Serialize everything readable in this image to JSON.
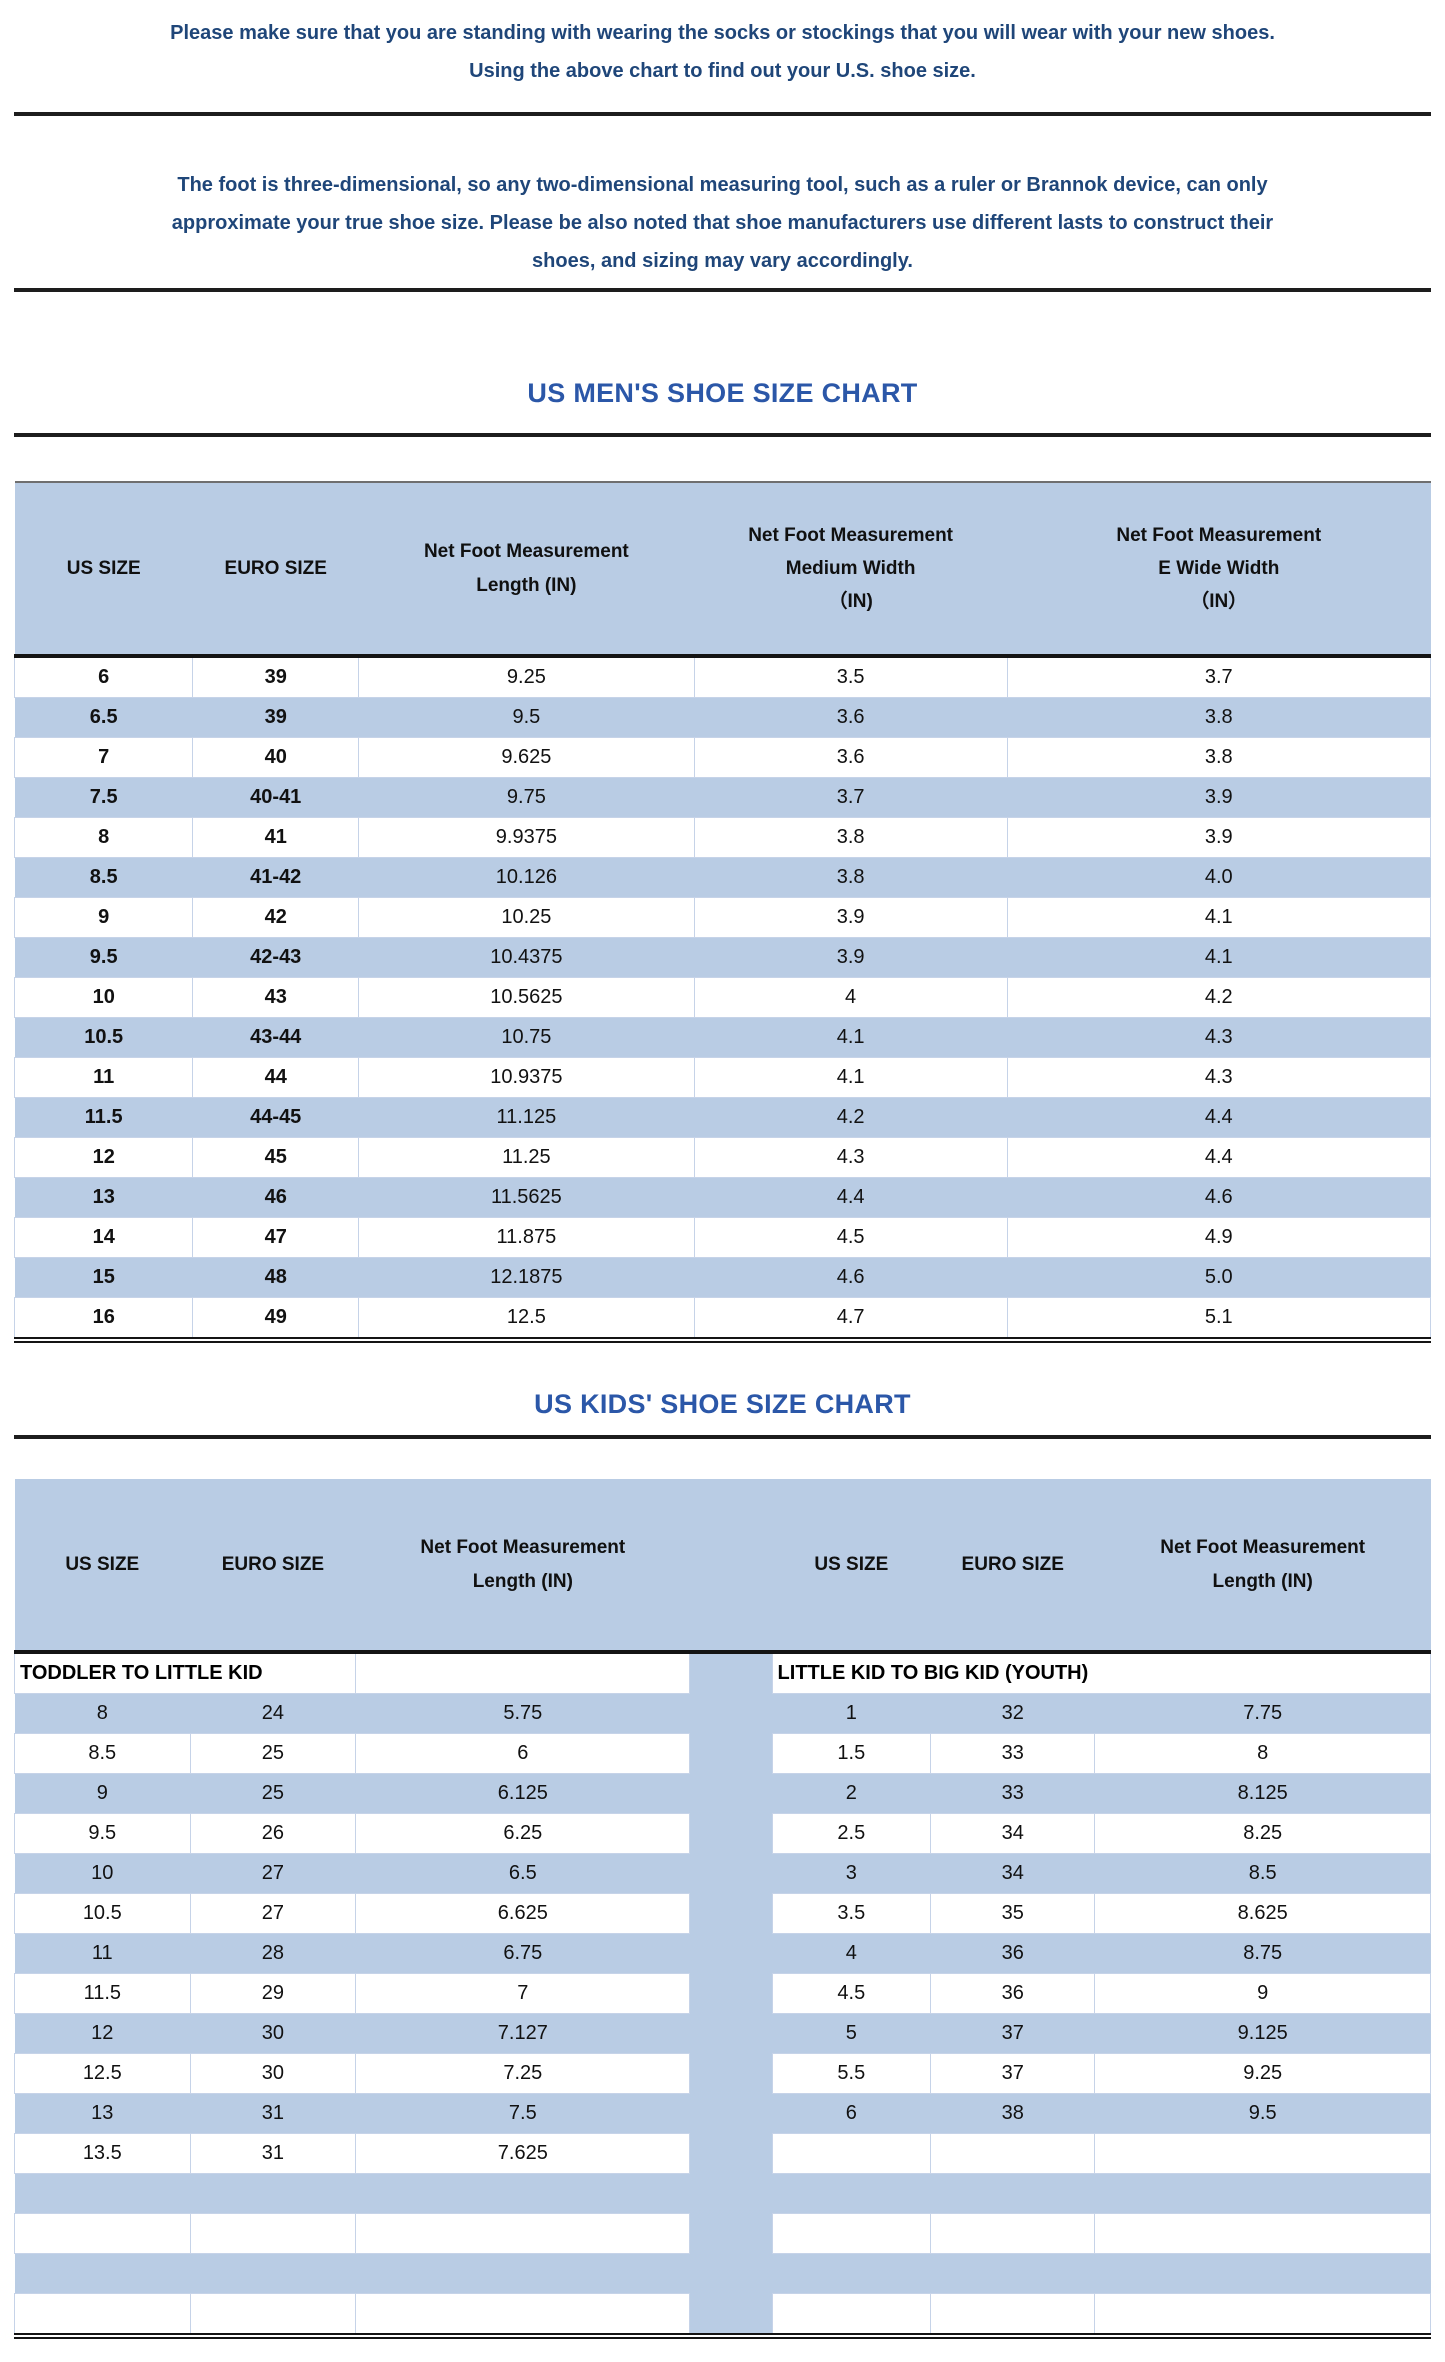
{
  "colors": {
    "paragraph_text": "#1f4679",
    "title_text": "#2b57a8",
    "row_blue": "#b9cce4",
    "grid_line": "#c6d3e8",
    "border_dark": "#141414"
  },
  "intro_primary": {
    "lines": [
      "Please make sure that you are standing with wearing the socks or stockings that you will wear with your new shoes.",
      "Using the above chart to find out your U.S. shoe size."
    ]
  },
  "intro_secondary": {
    "lines": [
      "The foot is three-dimensional, so any two-dimensional measuring tool, such as a ruler or Brannok device, can only",
      "approximate your true shoe size. Please be also noted that shoe manufacturers use different lasts to construct their",
      "shoes, and sizing may vary accordingly."
    ]
  },
  "mens_chart": {
    "title": "US MEN'S SHOE SIZE CHART",
    "columns": [
      "US SIZE",
      "EURO SIZE",
      "Net Foot Measurement\nLength (IN)",
      "Net Foot Measurement\nMedium Width\n（IN)",
      "Net Foot Measurement\nE Wide Width\n（IN）"
    ],
    "rows": [
      [
        "6",
        "39",
        "9.25",
        "3.5",
        "3.7"
      ],
      [
        "6.5",
        "39",
        "9.5",
        "3.6",
        "3.8"
      ],
      [
        "7",
        "40",
        "9.625",
        "3.6",
        "3.8"
      ],
      [
        "7.5",
        "40-41",
        "9.75",
        "3.7",
        "3.9"
      ],
      [
        "8",
        "41",
        "9.9375",
        "3.8",
        "3.9"
      ],
      [
        "8.5",
        "41-42",
        "10.126",
        "3.8",
        "4.0"
      ],
      [
        "9",
        "42",
        "10.25",
        "3.9",
        "4.1"
      ],
      [
        "9.5",
        "42-43",
        "10.4375",
        "3.9",
        "4.1"
      ],
      [
        "10",
        "43",
        "10.5625",
        "4",
        "4.2"
      ],
      [
        "10.5",
        "43-44",
        "10.75",
        "4.1",
        "4.3"
      ],
      [
        "11",
        "44",
        "10.9375",
        "4.1",
        "4.3"
      ],
      [
        "11.5",
        "44-45",
        "11.125",
        "4.2",
        "4.4"
      ],
      [
        "12",
        "45",
        "11.25",
        "4.3",
        "4.4"
      ],
      [
        "13",
        "46",
        "11.5625",
        "4.4",
        "4.6"
      ],
      [
        "14",
        "47",
        "11.875",
        "4.5",
        "4.9"
      ],
      [
        "15",
        "48",
        "12.1875",
        "4.6",
        "5.0"
      ],
      [
        "16",
        "49",
        "12.5",
        "4.7",
        "5.1"
      ]
    ]
  },
  "kids_chart": {
    "title": "US KIDS' SHOE SIZE CHART",
    "left": {
      "columns": [
        "US SIZE",
        "EURO SIZE",
        "Net Foot Measurement\nLength (IN)"
      ],
      "group_label": "TODDLER TO LITTLE KID",
      "rows": [
        [
          "8",
          "24",
          "5.75"
        ],
        [
          "8.5",
          "25",
          "6"
        ],
        [
          "9",
          "25",
          "6.125"
        ],
        [
          "9.5",
          "26",
          "6.25"
        ],
        [
          "10",
          "27",
          "6.5"
        ],
        [
          "10.5",
          "27",
          "6.625"
        ],
        [
          "11",
          "28",
          "6.75"
        ],
        [
          "11.5",
          "29",
          "7"
        ],
        [
          "12",
          "30",
          "7.127"
        ],
        [
          "12.5",
          "30",
          "7.25"
        ],
        [
          "13",
          "31",
          "7.5"
        ],
        [
          "13.5",
          "31",
          "7.625"
        ]
      ]
    },
    "right": {
      "columns": [
        "US SIZE",
        "EURO SIZE",
        "Net Foot Measurement\nLength (IN)"
      ],
      "group_label": "LITTLE KID TO BIG KID (YOUTH)",
      "rows": [
        [
          "1",
          "32",
          "7.75"
        ],
        [
          "1.5",
          "33",
          "8"
        ],
        [
          "2",
          "33",
          "8.125"
        ],
        [
          "2.5",
          "34",
          "8.25"
        ],
        [
          "3",
          "34",
          "8.5"
        ],
        [
          "3.5",
          "35",
          "8.625"
        ],
        [
          "4",
          "36",
          "8.75"
        ],
        [
          "4.5",
          "36",
          "9"
        ],
        [
          "5",
          "37",
          "9.125"
        ],
        [
          "5.5",
          "37",
          "9.25"
        ],
        [
          "6",
          "38",
          "9.5"
        ]
      ]
    },
    "body_row_count": 16
  }
}
